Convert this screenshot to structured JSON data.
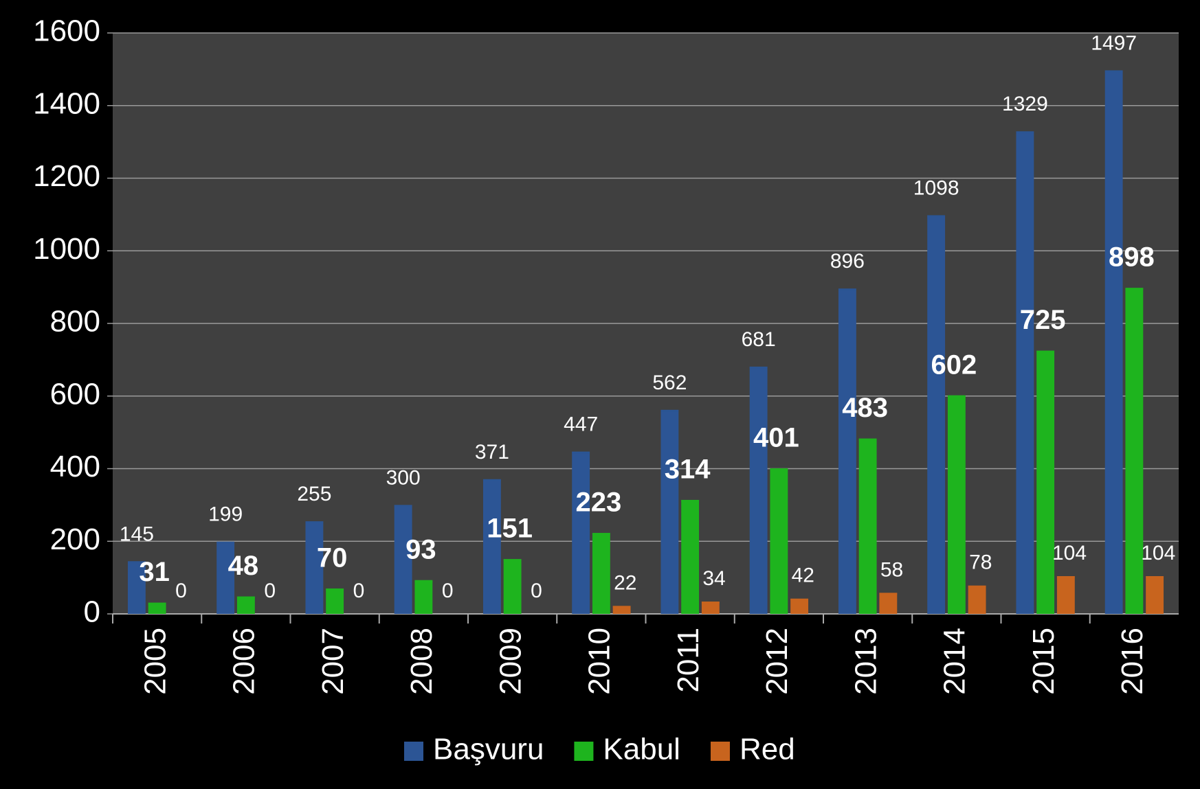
{
  "chart_data": {
    "type": "bar",
    "categories": [
      "2005",
      "2006",
      "2007",
      "2008",
      "2009",
      "2010",
      "2011",
      "2012",
      "2013",
      "2014",
      "2015",
      "2016"
    ],
    "series": [
      {
        "name": "Başvuru",
        "color": "#2c5595",
        "values": [
          145,
          199,
          255,
          300,
          371,
          447,
          562,
          681,
          896,
          1098,
          1329,
          1497
        ]
      },
      {
        "name": "Kabul",
        "color": "#1eb41e",
        "values": [
          31,
          48,
          70,
          93,
          151,
          223,
          314,
          401,
          483,
          602,
          725,
          898
        ]
      },
      {
        "name": "Red",
        "color": "#c8641e",
        "values": [
          0,
          0,
          0,
          0,
          0,
          22,
          34,
          42,
          58,
          78,
          104,
          104
        ]
      }
    ],
    "ylim": [
      0,
      1600
    ],
    "yticks": [
      0,
      200,
      400,
      600,
      800,
      1000,
      1200,
      1400,
      1600
    ],
    "grid": true,
    "legend": "bottom"
  }
}
